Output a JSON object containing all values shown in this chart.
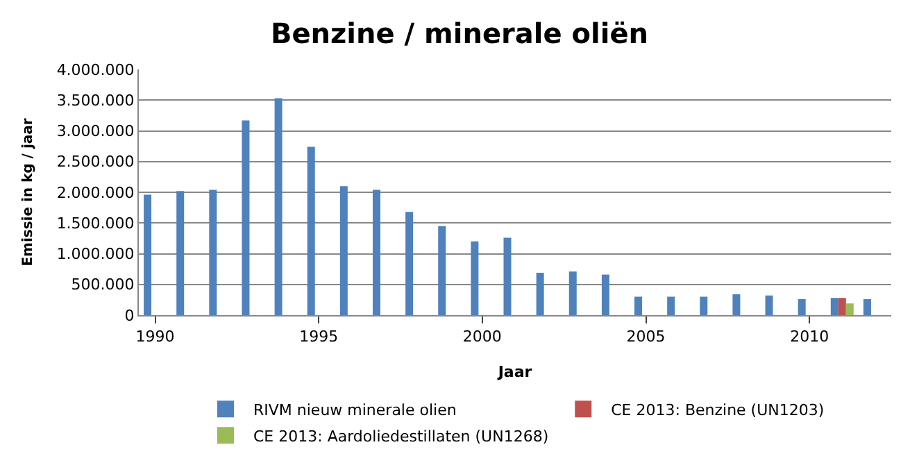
{
  "chart_data": {
    "type": "bar",
    "title": "Benzine / minerale oliën",
    "xlabel": "Jaar",
    "ylabel": "Emissie in kg / jaar",
    "categories": [
      "1990",
      null,
      null,
      null,
      null,
      "1995",
      null,
      null,
      null,
      null,
      "2000",
      null,
      null,
      null,
      null,
      "2005",
      null,
      null,
      null,
      null,
      "2010",
      null,
      null
    ],
    "series": [
      {
        "name": "RIVM nieuw minerale olien",
        "color": "#4f81bd",
        "values": [
          1960000,
          2020000,
          2040000,
          3170000,
          3530000,
          2740000,
          2100000,
          2040000,
          1680000,
          1450000,
          1200000,
          1260000,
          690000,
          710000,
          660000,
          300000,
          300000,
          300000,
          340000,
          320000,
          260000,
          280000,
          260000
        ]
      },
      {
        "name": "CE 2013: Benzine (UN1203)",
        "color": "#c0504d",
        "values": [
          null,
          null,
          null,
          null,
          null,
          null,
          null,
          null,
          null,
          null,
          null,
          null,
          null,
          null,
          null,
          null,
          null,
          null,
          null,
          null,
          null,
          280000,
          null
        ]
      },
      {
        "name": "CE 2013: Aardoliedestillaten (UN1268)",
        "color": "#9bbb59",
        "values": [
          null,
          null,
          null,
          null,
          null,
          null,
          null,
          null,
          null,
          null,
          null,
          null,
          null,
          null,
          null,
          null,
          null,
          null,
          null,
          null,
          null,
          190000,
          null
        ]
      }
    ],
    "ylim": [
      0,
      4000000
    ],
    "yticks": [
      {
        "value": 0,
        "label": "0"
      },
      {
        "value": 500000,
        "label": "500.000"
      },
      {
        "value": 1000000,
        "label": "1.000.000"
      },
      {
        "value": 1500000,
        "label": "1.500.000"
      },
      {
        "value": 2000000,
        "label": "2.000.000"
      },
      {
        "value": 2500000,
        "label": "2.500.000"
      },
      {
        "value": 3000000,
        "label": "3.000.000"
      },
      {
        "value": 3500000,
        "label": "3.500.000"
      },
      {
        "value": 4000000,
        "label": "4.000.000"
      }
    ],
    "grid": "y",
    "legend": "bottom"
  }
}
